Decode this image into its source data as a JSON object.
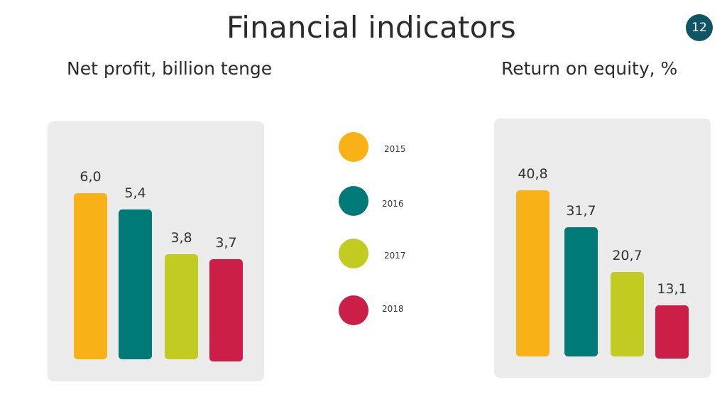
{
  "header": {
    "title": "Financial indicators",
    "page_number": "12"
  },
  "legend": {
    "items": [
      {
        "label": "2015",
        "color": "#f8b217"
      },
      {
        "label": "2016",
        "color": "#007a78"
      },
      {
        "label": "2017",
        "color": "#c2cb22"
      },
      {
        "label": "2018",
        "color": "#cc1f47"
      }
    ]
  },
  "chart_data": [
    {
      "type": "bar",
      "title": "Net profit, billion tenge",
      "categories": [
        "2015",
        "2016",
        "2017",
        "2018"
      ],
      "values": [
        6.0,
        5.4,
        3.8,
        3.7
      ],
      "labels": [
        "6,0",
        "5,4",
        "3,8",
        "3,7"
      ],
      "colors": [
        "#f8b217",
        "#007a78",
        "#c2cb22",
        "#cc1f47"
      ],
      "xlabel": "",
      "ylabel": "",
      "ylim": [
        0,
        6.0
      ],
      "grid": false,
      "legend_position": "center"
    },
    {
      "type": "bar",
      "title": "Return on equity, %",
      "categories": [
        "2015",
        "2016",
        "2017",
        "2018"
      ],
      "values": [
        40.8,
        31.7,
        20.7,
        13.1
      ],
      "labels": [
        "40,8",
        "31,7",
        "20,7",
        "13,1"
      ],
      "colors": [
        "#f8b217",
        "#007a78",
        "#c2cb22",
        "#cc1f47"
      ],
      "xlabel": "",
      "ylabel": "",
      "ylim": [
        0,
        40.8
      ],
      "grid": false,
      "legend_position": "center"
    }
  ]
}
